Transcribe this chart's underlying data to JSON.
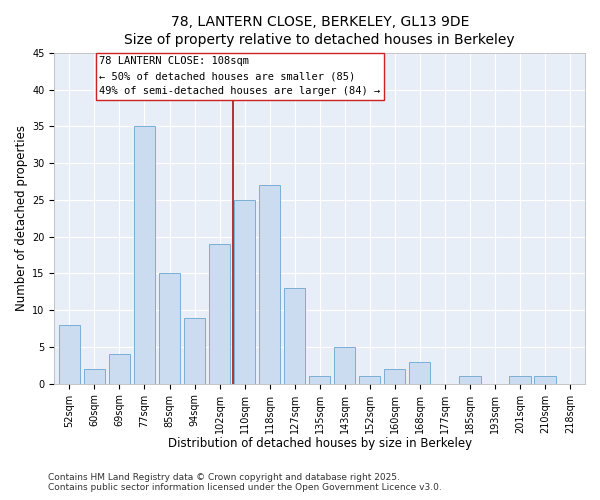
{
  "title": "78, LANTERN CLOSE, BERKELEY, GL13 9DE",
  "subtitle": "Size of property relative to detached houses in Berkeley",
  "xlabel": "Distribution of detached houses by size in Berkeley",
  "ylabel": "Number of detached properties",
  "categories": [
    "52sqm",
    "60sqm",
    "69sqm",
    "77sqm",
    "85sqm",
    "94sqm",
    "102sqm",
    "110sqm",
    "118sqm",
    "127sqm",
    "135sqm",
    "143sqm",
    "152sqm",
    "160sqm",
    "168sqm",
    "177sqm",
    "185sqm",
    "193sqm",
    "201sqm",
    "210sqm",
    "218sqm"
  ],
  "values": [
    8,
    2,
    4,
    35,
    15,
    9,
    19,
    25,
    27,
    13,
    1,
    5,
    1,
    2,
    3,
    0,
    1,
    0,
    1,
    1,
    0
  ],
  "bar_color": "#ccdcf0",
  "bar_edge_color": "#7aaed6",
  "vline_color": "#aa1111",
  "annotation_line1": "78 LANTERN CLOSE: 108sqm",
  "annotation_line2": "← 50% of detached houses are smaller (85)",
  "annotation_line3": "49% of semi-detached houses are larger (84) →",
  "annotation_box_facecolor": "#ffffff",
  "annotation_box_edgecolor": "#cc2222",
  "ylim": [
    0,
    45
  ],
  "yticks": [
    0,
    5,
    10,
    15,
    20,
    25,
    30,
    35,
    40,
    45
  ],
  "footer1": "Contains HM Land Registry data © Crown copyright and database right 2025.",
  "footer2": "Contains public sector information licensed under the Open Government Licence v3.0.",
  "bg_color": "#ffffff",
  "plot_bg_color": "#e8eef8",
  "title_fontsize": 10,
  "axis_label_fontsize": 8.5,
  "tick_fontsize": 7,
  "annotation_fontsize": 7.5,
  "footer_fontsize": 6.5,
  "vline_bar_index": 7
}
